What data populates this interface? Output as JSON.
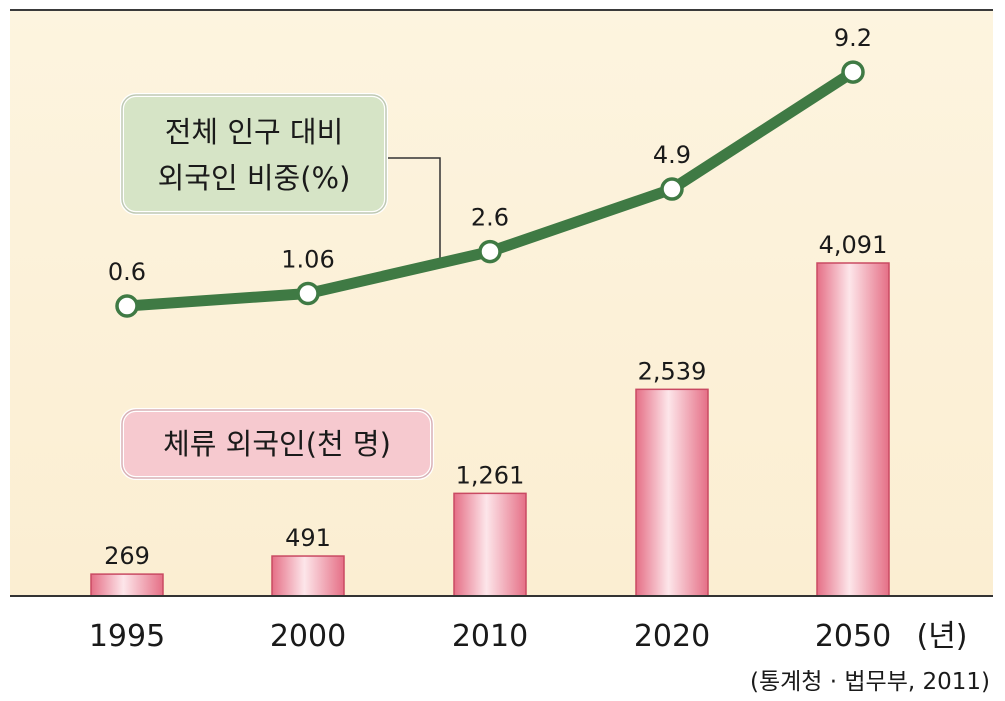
{
  "chart_data": {
    "type": "bar+line",
    "categories": [
      "1995",
      "2000",
      "2010",
      "2020",
      "2050"
    ],
    "x_unit": "(년)",
    "series": [
      {
        "name": "체류 외국인(천 명)",
        "type": "bar",
        "values": [
          269,
          491,
          1261,
          2539,
          4091
        ],
        "labels": [
          "269",
          "491",
          "1,261",
          "2,539",
          "4,091"
        ],
        "color": "#e8728a"
      },
      {
        "name": "전체 인구 대비 외국인 비중(%)",
        "type": "line",
        "values": [
          0.6,
          1.06,
          2.6,
          4.9,
          9.2
        ],
        "labels": [
          "0.6",
          "1.06",
          "2.6",
          "4.9",
          "9.2"
        ],
        "color": "#3f7a44"
      }
    ],
    "legend": {
      "line_label_1": "전체 인구 대비",
      "line_label_2": "외국인 비중(%)",
      "bar_label": "체류 외국인(천 명)"
    },
    "source": "(통계청 · 법무부, 2011)",
    "grid": false,
    "colors": {
      "background": "#fdf3dd",
      "bar": "#e8728a",
      "line": "#3f7a44",
      "line_legend_bg": "#d6e4c6",
      "bar_legend_bg": "#f6c9cf"
    }
  }
}
